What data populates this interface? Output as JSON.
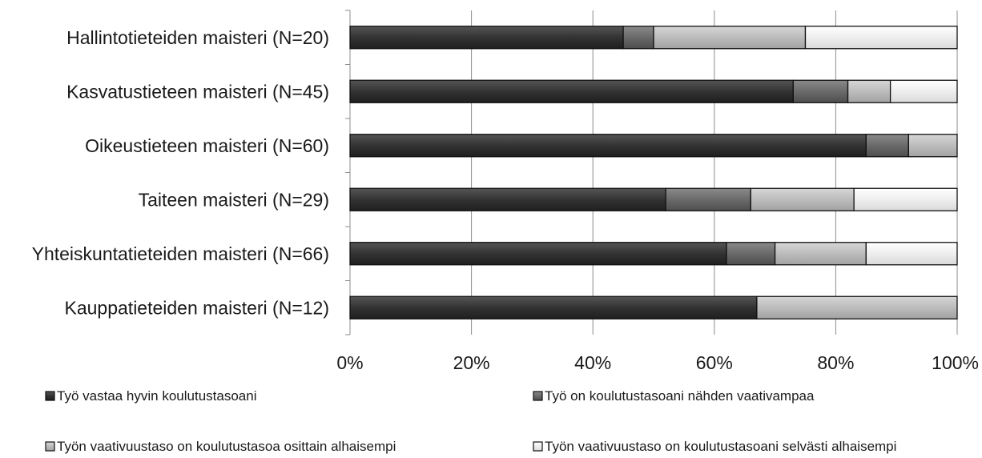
{
  "chart_data": {
    "type": "bar",
    "orientation": "horizontal",
    "stacked": true,
    "percent_stacked": true,
    "title": "",
    "xlabel": "",
    "ylabel": "",
    "xlim": [
      0,
      100
    ],
    "grid": true,
    "legend_position": "bottom",
    "x_ticks": [
      "0%",
      "20%",
      "40%",
      "60%",
      "80%",
      "100%"
    ],
    "categories": [
      "Hallintotieteiden maisteri (N=20)",
      "Kasvatustieteen maisteri (N=45)",
      "Oikeustieteen maisteri (N=60)",
      "Taiteen maisteri (N=29)",
      "Yhteiskuntatieteiden maisteri (N=66)",
      "Kauppatieteiden maisteri (N=12)"
    ],
    "series": [
      {
        "name": "Työ vastaa hyvin koulutustasoani",
        "color": "#3a3a3a",
        "values": [
          45,
          73,
          85,
          52,
          62,
          67
        ]
      },
      {
        "name": "Työ on koulutustasoani nähden vaativampaa",
        "color": "#6e6e6e",
        "values": [
          5,
          9,
          7,
          14,
          8,
          0
        ]
      },
      {
        "name": "Työn vaativuustaso on koulutustasoa osittain alhaisempi",
        "color": "#bdbdbd",
        "values": [
          25,
          7,
          8,
          17,
          15,
          33
        ]
      },
      {
        "name": "Työn vaativuustaso on koulutustasoani selvästi alhaisempi",
        "color": "#ededed",
        "values": [
          25,
          11,
          0,
          17,
          15,
          0
        ]
      }
    ]
  }
}
